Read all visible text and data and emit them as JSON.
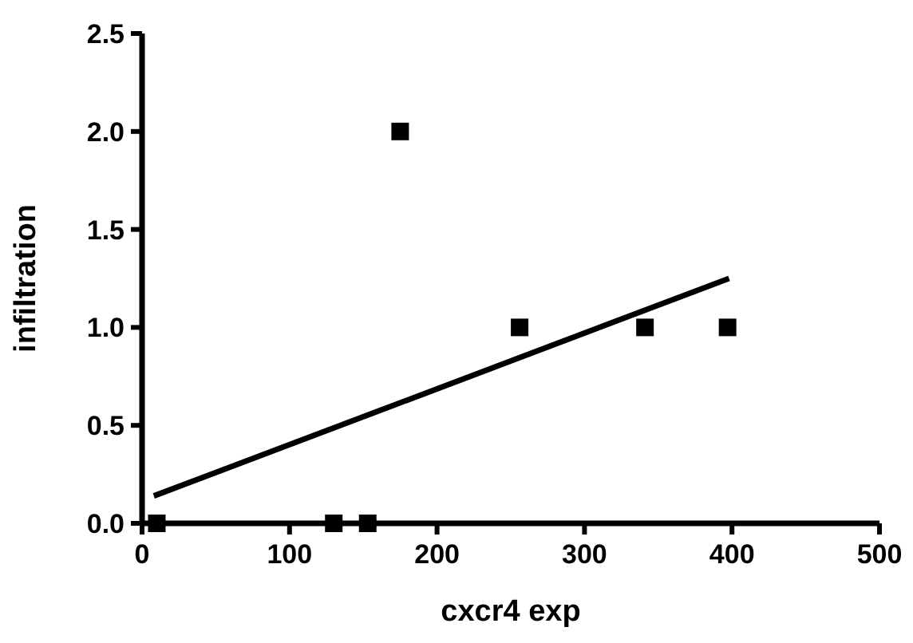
{
  "chart_data": {
    "type": "scatter",
    "xlabel": "cxcr4 exp",
    "ylabel": "infiltration",
    "xlim": [
      0,
      500
    ],
    "xticks": [
      0,
      100,
      200,
      300,
      400,
      500
    ],
    "ylim": [
      0,
      2.5
    ],
    "yticks": [
      {
        "value": 0,
        "label": "0.0"
      },
      {
        "value": 0.5,
        "label": "0.5"
      },
      {
        "value": 1,
        "label": "1.0"
      },
      {
        "value": 1.5,
        "label": "1.5"
      },
      {
        "value": 2,
        "label": "2.0"
      },
      {
        "value": 2.5,
        "label": "2.5"
      }
    ],
    "grid": false,
    "series": [
      {
        "color": "#000000",
        "marker": "square",
        "x": [
          10,
          130,
          153,
          175,
          256,
          341,
          397
        ],
        "values": [
          0,
          0,
          0,
          2,
          1,
          1,
          1
        ]
      },
      {
        "type": "line",
        "color": "#000000",
        "marker": "none",
        "line_style": "solid",
        "x": [
          8,
          398
        ],
        "values": [
          0.14,
          1.25
        ]
      }
    ]
  }
}
